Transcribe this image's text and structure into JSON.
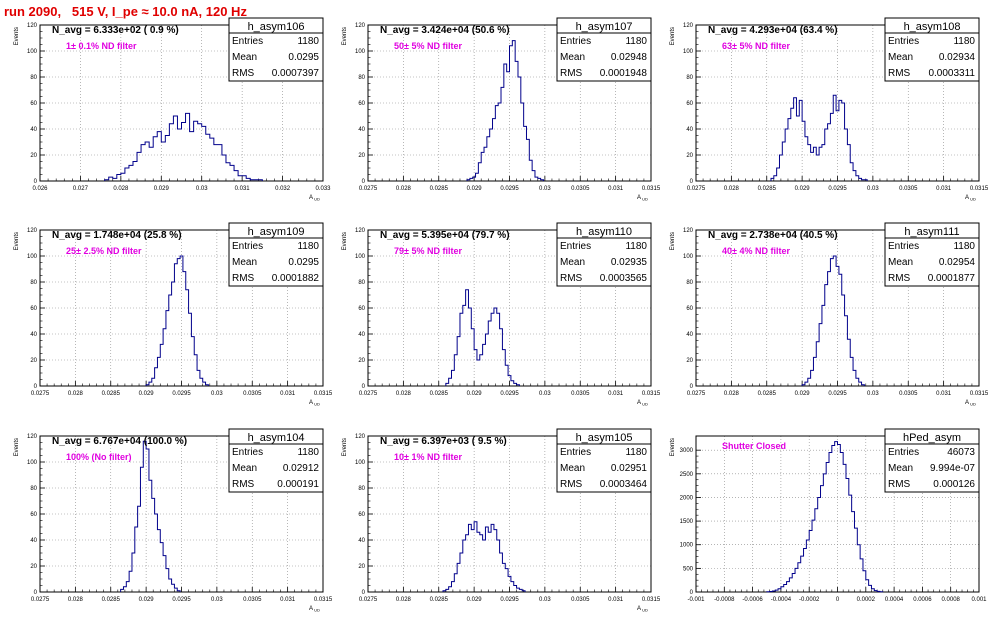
{
  "header": {
    "title": "run 2090,   515 V, I_pe ≈ 10.0 nA, 120 Hz"
  },
  "colors": {
    "title": "#e00000",
    "annotation": "#e000e0",
    "histogram": "#00008b",
    "grid": "#888888"
  },
  "chart_data": [
    {
      "type": "histogram",
      "name": "h_asym106",
      "nav": "N_avg = 6.333e+02 ( 0.9 %)",
      "note": "1± 0.1% ND filter",
      "stats": [
        [
          "Entries",
          "1180"
        ],
        [
          "Mean",
          "0.0295"
        ],
        [
          "RMS",
          "0.0007397"
        ]
      ],
      "ylabel": "Events",
      "xlabel": "A_UD",
      "xlim": [
        0.026,
        0.033
      ],
      "ylim": [
        0,
        120
      ],
      "xticks": [
        0.026,
        0.027,
        0.028,
        0.029,
        0.03,
        0.031,
        0.032,
        0.033
      ],
      "xtick_labels": [
        "0.026",
        "0.027",
        "0.028",
        "0.029",
        "0.03",
        "0.031",
        "0.032",
        "0.033"
      ],
      "yticks": [
        0,
        20,
        40,
        60,
        80,
        100,
        120
      ],
      "bins": {
        "start": 0.0276,
        "width": 0.0001,
        "counts": [
          1,
          3,
          2,
          5,
          6,
          10,
          12,
          15,
          22,
          28,
          30,
          26,
          34,
          38,
          30,
          35,
          44,
          50,
          40,
          45,
          52,
          38,
          46,
          44,
          42,
          36,
          33,
          28,
          28,
          20,
          14,
          12,
          8,
          4,
          4,
          2,
          1,
          1,
          1
        ]
      }
    },
    {
      "type": "histogram",
      "name": "h_asym107",
      "nav": "N_avg = 3.424e+04 (50.6 %)",
      "note": "50± 5% ND filter",
      "stats": [
        [
          "Entries",
          "1180"
        ],
        [
          "Mean",
          "0.02948"
        ],
        [
          "RMS",
          "0.0001948"
        ]
      ],
      "ylabel": "Events",
      "xlabel": "A_UD",
      "xlim": [
        0.0275,
        0.0315
      ],
      "ylim": [
        0,
        120
      ],
      "xticks": [
        0.0275,
        0.028,
        0.0285,
        0.029,
        0.0295,
        0.03,
        0.0305,
        0.031,
        0.0315
      ],
      "xtick_labels": [
        "0.0275",
        "0.028",
        "0.0285",
        "0.029",
        "0.0295",
        "0.03",
        "0.0305",
        "0.031",
        "0.0315"
      ],
      "yticks": [
        0,
        20,
        40,
        60,
        80,
        100,
        120
      ],
      "bins": {
        "start": 0.0289,
        "width": 4e-05,
        "counts": [
          1,
          2,
          3,
          6,
          14,
          22,
          26,
          34,
          40,
          48,
          58,
          60,
          72,
          90,
          84,
          104,
          108,
          92,
          80,
          60,
          42,
          32,
          16,
          8,
          3,
          2,
          1
        ]
      }
    },
    {
      "type": "histogram",
      "name": "h_asym108",
      "nav": "N_avg = 4.293e+04 (63.4 %)",
      "note": "63± 5% ND filter",
      "stats": [
        [
          "Entries",
          "1180"
        ],
        [
          "Mean",
          "0.02934"
        ],
        [
          "RMS",
          "0.0003311"
        ]
      ],
      "ylabel": "Events",
      "xlabel": "A_UD",
      "xlim": [
        0.0275,
        0.0315
      ],
      "ylim": [
        0,
        120
      ],
      "xticks": [
        0.0275,
        0.028,
        0.0285,
        0.029,
        0.0295,
        0.03,
        0.0305,
        0.031,
        0.0315
      ],
      "xtick_labels": [
        "0.0275",
        "0.028",
        "0.0285",
        "0.029",
        "0.0295",
        "0.03",
        "0.0305",
        "0.031",
        "0.0315"
      ],
      "yticks": [
        0,
        20,
        40,
        60,
        80,
        100,
        120
      ],
      "bins": {
        "start": 0.02856,
        "width": 4e-05,
        "counts": [
          2,
          4,
          10,
          20,
          30,
          40,
          48,
          56,
          64,
          50,
          62,
          46,
          34,
          28,
          22,
          26,
          20,
          26,
          28,
          40,
          44,
          52,
          66,
          54,
          62,
          60,
          40,
          28,
          14,
          8,
          4,
          2,
          1,
          1
        ]
      }
    },
    {
      "type": "histogram",
      "name": "h_asym109",
      "nav": "N_avg = 1.748e+04 (25.8 %)",
      "note": "25± 2.5% ND filter",
      "stats": [
        [
          "Entries",
          "1180"
        ],
        [
          "Mean",
          "0.0295"
        ],
        [
          "RMS",
          "0.0001882"
        ]
      ],
      "ylabel": "Events",
      "xlabel": "A_UD",
      "xlim": [
        0.0275,
        0.0315
      ],
      "ylim": [
        0,
        120
      ],
      "xticks": [
        0.0275,
        0.028,
        0.0285,
        0.029,
        0.0295,
        0.03,
        0.0305,
        0.031,
        0.0315
      ],
      "xtick_labels": [
        "0.0275",
        "0.028",
        "0.0285",
        "0.029",
        "0.0295",
        "0.03",
        "0.0305",
        "0.031",
        "0.0315"
      ],
      "yticks": [
        0,
        20,
        40,
        60,
        80,
        100,
        120
      ],
      "bins": {
        "start": 0.029,
        "width": 4e-05,
        "counts": [
          1,
          3,
          6,
          14,
          22,
          32,
          44,
          58,
          70,
          80,
          94,
          98,
          100,
          88,
          74,
          56,
          38,
          24,
          12,
          6,
          3,
          1
        ]
      }
    },
    {
      "type": "histogram",
      "name": "h_asym110",
      "nav": "N_avg = 5.395e+04 (79.7 %)",
      "note": "79± 5% ND filter",
      "stats": [
        [
          "Entries",
          "1180"
        ],
        [
          "Mean",
          "0.02935"
        ],
        [
          "RMS",
          "0.0003565"
        ]
      ],
      "ylabel": "Events",
      "xlabel": "A_UD",
      "xlim": [
        0.0275,
        0.0315
      ],
      "ylim": [
        0,
        120
      ],
      "xticks": [
        0.0275,
        0.028,
        0.0285,
        0.029,
        0.0295,
        0.03,
        0.0305,
        0.031,
        0.0315
      ],
      "xtick_labels": [
        "0.0275",
        "0.028",
        "0.0285",
        "0.029",
        "0.0295",
        "0.03",
        "0.0305",
        "0.031",
        "0.0315"
      ],
      "yticks": [
        0,
        20,
        40,
        60,
        80,
        100,
        120
      ],
      "bins": {
        "start": 0.0286,
        "width": 4e-05,
        "counts": [
          2,
          6,
          12,
          24,
          38,
          56,
          62,
          74,
          60,
          44,
          28,
          20,
          24,
          32,
          40,
          50,
          56,
          60,
          56,
          44,
          28,
          16,
          8,
          4,
          2,
          1
        ]
      }
    },
    {
      "type": "histogram",
      "name": "h_asym111",
      "nav": "N_avg = 2.738e+04 (40.5 %)",
      "note": "40± 4% ND filter",
      "stats": [
        [
          "Entries",
          "1180"
        ],
        [
          "Mean",
          "0.02954"
        ],
        [
          "RMS",
          "0.0001877"
        ]
      ],
      "ylabel": "Events",
      "xlabel": "A_UD",
      "xlim": [
        0.0275,
        0.0315
      ],
      "ylim": [
        0,
        120
      ],
      "xticks": [
        0.0275,
        0.028,
        0.0285,
        0.029,
        0.0295,
        0.03,
        0.0305,
        0.031,
        0.0315
      ],
      "xtick_labels": [
        "0.0275",
        "0.028",
        "0.0285",
        "0.029",
        "0.0295",
        "0.03",
        "0.0305",
        "0.031",
        "0.0315"
      ],
      "yticks": [
        0,
        20,
        40,
        60,
        80,
        100,
        120
      ],
      "bins": {
        "start": 0.029,
        "width": 4e-05,
        "counts": [
          1,
          3,
          6,
          12,
          22,
          34,
          48,
          62,
          78,
          88,
          98,
          100,
          92,
          86,
          70,
          54,
          36,
          22,
          12,
          6,
          3,
          1
        ]
      }
    },
    {
      "type": "histogram",
      "name": "h_asym104",
      "nav": "N_avg = 6.767e+04 (100.0 %)",
      "note": "100% (No filter)",
      "stats": [
        [
          "Entries",
          "1180"
        ],
        [
          "Mean",
          "0.02912"
        ],
        [
          "RMS",
          "0.000191"
        ]
      ],
      "ylabel": "Events",
      "xlabel": "A_UD",
      "xlim": [
        0.0275,
        0.0315
      ],
      "ylim": [
        0,
        120
      ],
      "xticks": [
        0.0275,
        0.028,
        0.0285,
        0.029,
        0.0295,
        0.03,
        0.0305,
        0.031,
        0.0315
      ],
      "xtick_labels": [
        "0.0275",
        "0.028",
        "0.0285",
        "0.029",
        "0.0295",
        "0.03",
        "0.0305",
        "0.031",
        "0.0315"
      ],
      "yticks": [
        0,
        20,
        40,
        60,
        80,
        100,
        120
      ],
      "bins": {
        "start": 0.02864,
        "width": 4e-05,
        "counts": [
          2,
          4,
          8,
          16,
          30,
          50,
          66,
          96,
          116,
          110,
          86,
          72,
          60,
          48,
          38,
          28,
          18,
          10,
          6,
          3,
          1
        ]
      }
    },
    {
      "type": "histogram",
      "name": "h_asym105",
      "nav": "N_avg = 6.397e+03 ( 9.5 %)",
      "note": "10± 1% ND filter",
      "stats": [
        [
          "Entries",
          "1180"
        ],
        [
          "Mean",
          "0.02951"
        ],
        [
          "RMS",
          "0.0003464"
        ]
      ],
      "ylabel": "Events",
      "xlabel": "A_UD",
      "xlim": [
        0.0275,
        0.0315
      ],
      "ylim": [
        0,
        120
      ],
      "xticks": [
        0.0275,
        0.028,
        0.0285,
        0.029,
        0.0295,
        0.03,
        0.0305,
        0.031,
        0.0315
      ],
      "xtick_labels": [
        "0.0275",
        "0.028",
        "0.0285",
        "0.029",
        "0.0295",
        "0.03",
        "0.0305",
        "0.031",
        "0.0315"
      ],
      "yticks": [
        0,
        20,
        40,
        60,
        80,
        100,
        120
      ],
      "bins": {
        "start": 0.02856,
        "width": 4e-05,
        "counts": [
          1,
          2,
          4,
          8,
          14,
          22,
          30,
          40,
          44,
          52,
          48,
          54,
          46,
          44,
          40,
          50,
          46,
          52,
          48,
          40,
          30,
          22,
          18,
          12,
          8,
          5,
          3,
          2,
          1
        ]
      }
    },
    {
      "type": "histogram",
      "name": "hPed_asym",
      "nav": "",
      "note": "Shutter Closed",
      "stats": [
        [
          "Entries",
          "46073"
        ],
        [
          "Mean",
          "9.994e-07"
        ],
        [
          "RMS",
          "0.000126"
        ]
      ],
      "ylabel": "Events",
      "xlabel": "",
      "xlim": [
        -0.001,
        0.001
      ],
      "ylim": [
        0,
        3300
      ],
      "xticks": [
        -0.001,
        -0.0008,
        -0.0006,
        -0.0004,
        -0.0002,
        0,
        0.0002,
        0.0004,
        0.0006,
        0.0008,
        0.001
      ],
      "xtick_labels": [
        "-0.001",
        "-0.0008",
        "-0.0006",
        "-0.0004",
        "-0.0002",
        "0",
        "0.0002",
        "0.0004",
        "0.0006",
        "0.0008",
        "0.001"
      ],
      "yticks": [
        0,
        500,
        1000,
        1500,
        2000,
        2500,
        3000
      ],
      "bins": {
        "start": -0.0005,
        "width": 2e-05,
        "counts": [
          5,
          10,
          20,
          40,
          70,
          110,
          160,
          220,
          300,
          390,
          500,
          620,
          760,
          920,
          1100,
          1300,
          1520,
          1760,
          2000,
          2250,
          2500,
          2740,
          2950,
          3100,
          3180,
          3120,
          2950,
          2700,
          2400,
          2050,
          1700,
          1350,
          1000,
          700,
          450,
          260,
          140,
          70,
          30,
          12,
          5
        ]
      }
    }
  ]
}
